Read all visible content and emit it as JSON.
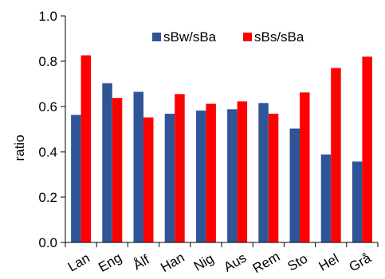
{
  "chart_data": {
    "type": "bar",
    "categories": [
      "Lan",
      "Eng",
      "Ålf",
      "Han",
      "Nig",
      "Aus",
      "Rem",
      "Sto",
      "Hel",
      "Grå"
    ],
    "series": [
      {
        "name": "sBw/sBa",
        "color": "#2f5597",
        "values": [
          0.563,
          0.703,
          0.665,
          0.568,
          0.582,
          0.588,
          0.615,
          0.503,
          0.388,
          0.357
        ]
      },
      {
        "name": "sBs/sBa",
        "color": "#ff0000",
        "values": [
          0.826,
          0.638,
          0.552,
          0.655,
          0.612,
          0.623,
          0.568,
          0.662,
          0.77,
          0.82
        ]
      }
    ],
    "title": "",
    "xlabel": "",
    "ylabel": "ratio",
    "ylim": [
      0.0,
      1.0
    ],
    "yticks": [
      "0.0",
      "0.2",
      "0.4",
      "0.6",
      "0.8",
      "1.0"
    ],
    "grid": false,
    "legend": "top-right"
  }
}
